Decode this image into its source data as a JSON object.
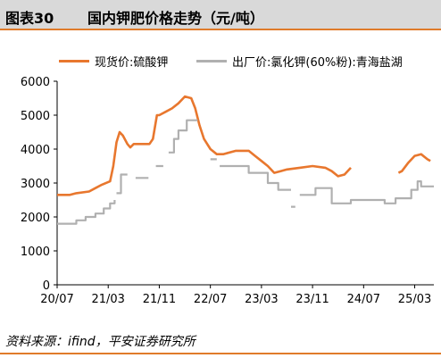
{
  "figure": {
    "label": "图表30",
    "title": "国内钾肥价格走势（元/吨）",
    "source": "资料来源：ifind，平安证券研究所"
  },
  "colors": {
    "series1": "#e8772e",
    "series2": "#b0b0b0",
    "accent": "#e07b2a",
    "header_bg": "#d9d9d9"
  },
  "chart_data": {
    "type": "line",
    "ylim": [
      0,
      6000
    ],
    "yticks": [
      0,
      1000,
      2000,
      3000,
      4000,
      5000,
      6000
    ],
    "xlim": [
      "2020-07",
      "2025-06"
    ],
    "xticks": [
      "20/07",
      "21/03",
      "21/11",
      "22/07",
      "23/03",
      "23/11",
      "24/07",
      "25/03"
    ],
    "grid": false,
    "legend_position": "top",
    "series": [
      {
        "name": "现货价:硫酸钾",
        "style": "solid",
        "points": [
          [
            "2020-07-01",
            2650
          ],
          [
            "2020-09-01",
            2650
          ],
          [
            "2020-10-01",
            2700
          ],
          [
            "2020-12-01",
            2750
          ],
          [
            "2021-01-01",
            2850
          ],
          [
            "2021-02-01",
            2950
          ],
          [
            "2021-03-10",
            3050
          ],
          [
            "2021-03-25",
            3500
          ],
          [
            "2021-04-10",
            4200
          ],
          [
            "2021-04-25",
            4500
          ],
          [
            "2021-05-10",
            4400
          ],
          [
            "2021-06-01",
            4150
          ],
          [
            "2021-06-15",
            4050
          ],
          [
            "2021-07-01",
            4150
          ],
          [
            "2021-09-15",
            4150
          ],
          [
            "2021-10-01",
            4300
          ],
          [
            "2021-10-20",
            5000
          ],
          [
            "2021-11-01",
            5000
          ],
          [
            "2021-12-01",
            5100
          ],
          [
            "2022-01-01",
            5200
          ],
          [
            "2022-02-01",
            5350
          ],
          [
            "2022-03-01",
            5550
          ],
          [
            "2022-04-01",
            5500
          ],
          [
            "2022-04-20",
            5200
          ],
          [
            "2022-05-10",
            4700
          ],
          [
            "2022-06-01",
            4300
          ],
          [
            "2022-07-01",
            4000
          ],
          [
            "2022-08-01",
            3850
          ],
          [
            "2022-09-01",
            3850
          ],
          [
            "2022-11-01",
            3950
          ],
          [
            "2023-01-01",
            3950
          ],
          [
            "2023-02-01",
            3800
          ],
          [
            "2023-03-01",
            3650
          ],
          [
            "2023-04-01",
            3500
          ],
          [
            "2023-05-01",
            3300
          ],
          [
            "2023-06-01",
            3350
          ],
          [
            "2023-07-01",
            3400
          ],
          [
            "2023-09-01",
            3450
          ],
          [
            "2023-11-01",
            3500
          ],
          [
            "2024-01-01",
            3450
          ],
          [
            "2024-02-01",
            3350
          ],
          [
            "2024-03-01",
            3200
          ],
          [
            "2024-04-01",
            3250
          ],
          [
            "2024-05-01",
            3450
          ],
          null,
          [
            "2024-12-15",
            3300
          ],
          [
            "2025-01-01",
            3350
          ],
          [
            "2025-02-01",
            3600
          ],
          [
            "2025-03-01",
            3800
          ],
          [
            "2025-04-01",
            3850
          ],
          [
            "2025-05-01",
            3700
          ],
          [
            "2025-05-15",
            3650
          ]
        ]
      },
      {
        "name": "出厂价:氯化钾(60%粉):青海盐湖",
        "style": "step",
        "points": [
          [
            "2020-07-01",
            1800
          ],
          [
            "2020-10-01",
            1900
          ],
          [
            "2020-11-15",
            2000
          ],
          [
            "2021-01-01",
            2100
          ],
          [
            "2021-02-10",
            2250
          ],
          [
            "2021-03-10",
            2400
          ],
          [
            "2021-04-01",
            2500
          ],
          null,
          [
            "2021-04-10",
            2700
          ],
          [
            "2021-05-01",
            3250
          ],
          [
            "2021-06-01",
            3250
          ],
          null,
          [
            "2021-07-10",
            3150
          ],
          [
            "2021-09-10",
            3150
          ],
          null,
          [
            "2021-10-15",
            3500
          ],
          [
            "2021-11-20",
            3500
          ],
          null,
          [
            "2021-12-15",
            3900
          ],
          [
            "2022-01-10",
            4300
          ],
          [
            "2022-02-01",
            4550
          ],
          [
            "2022-03-10",
            4850
          ],
          [
            "2022-05-01",
            4850
          ],
          null,
          [
            "2022-07-01",
            3700
          ],
          [
            "2022-08-01",
            3700
          ],
          null,
          [
            "2022-08-15",
            3500
          ],
          [
            "2022-11-20",
            3500
          ],
          [
            "2023-01-01",
            3300
          ],
          [
            "2023-04-01",
            3000
          ],
          [
            "2023-05-20",
            2800
          ],
          [
            "2023-07-20",
            2800
          ],
          null,
          [
            "2023-07-20",
            2300
          ],
          [
            "2023-08-10",
            2300
          ],
          null,
          [
            "2023-09-01",
            2650
          ],
          [
            "2023-10-20",
            2650
          ],
          [
            "2023-11-15",
            2850
          ],
          [
            "2024-01-20",
            2850
          ],
          [
            "2024-02-01",
            2400
          ],
          [
            "2024-04-20",
            2400
          ],
          [
            "2024-05-01",
            2500
          ],
          [
            "2024-10-01",
            2500
          ],
          [
            "2024-10-10",
            2400
          ],
          [
            "2024-11-20",
            2400
          ],
          [
            "2024-12-01",
            2550
          ],
          [
            "2025-02-01",
            2550
          ],
          [
            "2025-02-15",
            2800
          ],
          [
            "2025-03-15",
            3050
          ],
          [
            "2025-04-01",
            2900
          ],
          [
            "2025-06-01",
            2900
          ]
        ]
      }
    ]
  }
}
